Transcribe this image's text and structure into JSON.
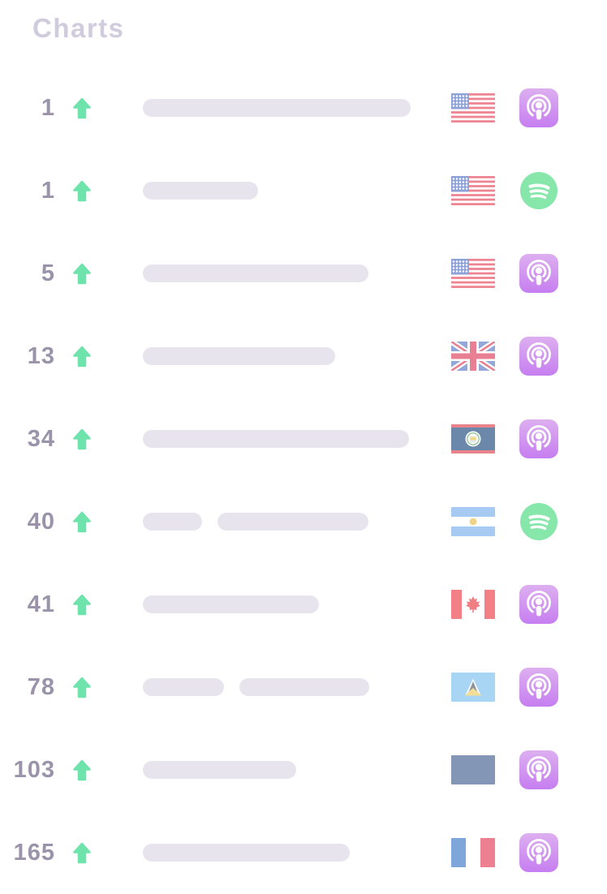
{
  "page": {
    "title": "Charts"
  },
  "colors": {
    "background": "#ffffff",
    "title_text": "#d0ccdd",
    "rank_text": "#9a93aa",
    "up_arrow_green": "#6fe3ac",
    "placeholder_bar": "#e8e4ee",
    "apple_podcasts_gradient_top": "#ddaff0",
    "apple_podcasts_gradient_bottom": "#c67ef0",
    "spotify_green": "#87e7ab"
  },
  "rows": [
    {
      "rank": "1",
      "change": "up",
      "bars": [
        330
      ],
      "country": "united-states",
      "flag": "us",
      "platform": "apple-podcasts"
    },
    {
      "rank": "1",
      "change": "up",
      "bars": [
        142
      ],
      "country": "united-states",
      "flag": "us",
      "platform": "spotify"
    },
    {
      "rank": "5",
      "change": "up",
      "bars": [
        278
      ],
      "country": "united-states",
      "flag": "us",
      "platform": "apple-podcasts"
    },
    {
      "rank": "13",
      "change": "up",
      "bars": [
        237
      ],
      "country": "united-kingdom",
      "flag": "gb",
      "platform": "apple-podcasts"
    },
    {
      "rank": "34",
      "change": "up",
      "bars": [
        328
      ],
      "country": "belize",
      "flag": "bz",
      "platform": "apple-podcasts"
    },
    {
      "rank": "40",
      "change": "up",
      "bars": [
        73,
        186
      ],
      "country": "argentina",
      "flag": "ar",
      "platform": "spotify"
    },
    {
      "rank": "41",
      "change": "up",
      "bars": [
        217
      ],
      "country": "canada",
      "flag": "ca",
      "platform": "apple-podcasts"
    },
    {
      "rank": "78",
      "change": "up",
      "bars": [
        100,
        160
      ],
      "country": "saint-lucia",
      "flag": "lc",
      "platform": "apple-podcasts"
    },
    {
      "rank": "103",
      "change": "up",
      "bars": [
        189
      ],
      "country": "unknown",
      "flag": "unknown",
      "platform": "apple-podcasts"
    },
    {
      "rank": "165",
      "change": "up",
      "bars": [
        255
      ],
      "country": "france",
      "flag": "fr",
      "platform": "apple-podcasts"
    }
  ]
}
